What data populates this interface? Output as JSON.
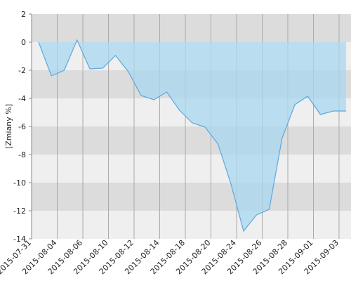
{
  "chart_data": {
    "type": "area",
    "y_label": "[Zmiany %]",
    "categories": [
      "2015-07-31",
      null,
      "2015-08-04",
      null,
      "2015-08-06",
      null,
      "2015-08-10",
      null,
      "2015-08-12",
      null,
      "2015-08-14",
      null,
      "2015-08-18",
      null,
      "2015-08-20",
      null,
      "2015-08-24",
      null,
      "2015-08-26",
      null,
      "2015-08-28",
      null,
      "2015-09-01",
      null,
      "2015-09-03"
    ],
    "values": [
      0,
      -2.4,
      -2.0,
      0.15,
      -1.9,
      -1.85,
      -0.95,
      -2.1,
      -3.8,
      -4.1,
      -3.55,
      -4.85,
      -5.75,
      -6.05,
      -7.25,
      -10.05,
      -13.45,
      -12.3,
      -11.9,
      -6.85,
      -4.45,
      -3.85,
      -5.15,
      -4.9,
      -4.9
    ],
    "color": "#5aa8e0",
    "ylim": [
      -14,
      2
    ],
    "yticks": [
      2,
      0,
      -2,
      -4,
      -6,
      -8,
      -10,
      -12,
      -14
    ],
    "grid": true
  }
}
